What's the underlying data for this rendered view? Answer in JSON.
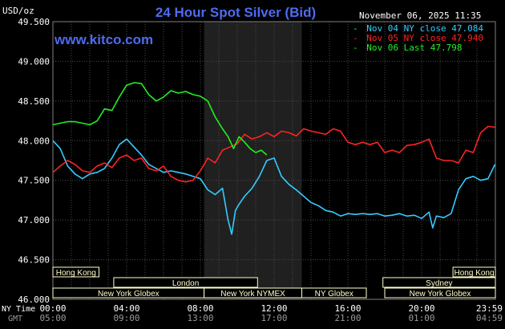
{
  "title": "24 Hour Spot Silver (Bid)",
  "brand": "www.kitco.com",
  "timestamp": "November 06, 2025 11:35",
  "unit_label": "USD/oz",
  "legend": [
    {
      "dash": "-",
      "text": "Nov 04 NY close 47.084",
      "color": "#33ccff"
    },
    {
      "dash": "-",
      "text": "Nov 05 NY close 47.940",
      "color": "#ff2222"
    },
    {
      "dash": "-",
      "text": "Nov 06 Last 47.798",
      "color": "#22ee22"
    }
  ],
  "axis_labels": {
    "ny_time": "NY Time",
    "gmt": "GMT"
  },
  "sessions": [
    {
      "label": "Hong Kong",
      "row": 0,
      "start": 0,
      "end": 2.5
    },
    {
      "label": "Hong Kong",
      "row": 0,
      "start": 21.7,
      "end": 24
    },
    {
      "label": "London",
      "row": 1,
      "start": 3.3,
      "end": 11.1
    },
    {
      "label": "Sydney",
      "row": 1,
      "start": 17.9,
      "end": 24
    },
    {
      "label": "New York Globex",
      "row": 2,
      "start": 0,
      "end": 8.2
    },
    {
      "label": "New York NYMEX",
      "row": 2,
      "start": 8.2,
      "end": 13.5
    },
    {
      "label": "NY Globex",
      "row": 2,
      "start": 13.5,
      "end": 17.0
    },
    {
      "label": "New York Globex",
      "row": 2,
      "start": 18.0,
      "end": 24
    }
  ],
  "colors": {
    "background": "#000000",
    "grid": "#4a4a4a",
    "axis_text": "#ffffff",
    "title": "#4f6bf0",
    "gmt_text": "#999999",
    "session_band": "#3a3a3a",
    "session_box": "#ffffcc",
    "session_text": "#ffffcc"
  },
  "chart_data": {
    "type": "line",
    "title": "24 Hour Spot Silver (Bid)",
    "ylabel": "USD/oz",
    "xlabel": "",
    "ylim": [
      46.0,
      49.5
    ],
    "xlim": [
      0,
      24
    ],
    "yticks": [
      "49.500",
      "49.000",
      "48.500",
      "48.000",
      "47.500",
      "47.000",
      "46.500",
      "46.000"
    ],
    "ytick_values": [
      49.5,
      49.0,
      48.5,
      48.0,
      47.5,
      47.0,
      46.5,
      46.0
    ],
    "xticks_ny": [
      "00:00",
      "04:00",
      "08:00",
      "12:00",
      "16:00",
      "20:00",
      "23:59"
    ],
    "xticks_gmt": [
      "05:00",
      "09:00",
      "13:00",
      "17:00",
      "21:00",
      "01:00",
      "04:59"
    ],
    "xtick_hours": [
      0,
      4,
      8,
      12,
      16,
      20,
      23.98
    ],
    "shaded_hours": [
      8.2,
      13.5
    ],
    "grid": true,
    "series": [
      {
        "name": "Nov 04 NY close 47.084",
        "color": "#33ccff",
        "x": [
          0,
          0.4,
          0.8,
          1.2,
          1.6,
          2.0,
          2.4,
          2.8,
          3.2,
          3.6,
          4.0,
          4.4,
          4.8,
          5.2,
          5.6,
          6.0,
          6.4,
          6.8,
          7.2,
          7.6,
          8.0,
          8.4,
          8.8,
          9.2,
          9.5,
          9.7,
          9.9,
          10.1,
          10.4,
          10.8,
          11.2,
          11.6,
          12.0,
          12.4,
          12.8,
          13.2,
          13.6,
          14.0,
          14.4,
          14.8,
          15.2,
          15.6,
          16.0,
          16.4,
          16.8,
          17.2,
          17.6,
          18.0,
          18.4,
          18.8,
          19.2,
          19.6,
          20.0,
          20.4,
          20.6,
          20.8,
          21.2,
          21.6,
          22.0,
          22.4,
          22.8,
          23.2,
          23.6,
          23.98
        ],
        "values": [
          48.0,
          47.9,
          47.68,
          47.58,
          47.52,
          47.58,
          47.6,
          47.65,
          47.78,
          47.95,
          48.02,
          47.92,
          47.82,
          47.7,
          47.65,
          47.6,
          47.62,
          47.6,
          47.58,
          47.55,
          47.52,
          47.38,
          47.32,
          47.4,
          47.0,
          46.82,
          47.12,
          47.2,
          47.3,
          47.4,
          47.55,
          47.75,
          47.78,
          47.55,
          47.45,
          47.38,
          47.3,
          47.22,
          47.18,
          47.12,
          47.1,
          47.05,
          47.08,
          47.07,
          47.08,
          47.07,
          47.08,
          47.05,
          47.06,
          47.08,
          47.05,
          47.06,
          47.02,
          47.1,
          46.9,
          47.05,
          47.03,
          47.08,
          47.38,
          47.52,
          47.55,
          47.5,
          47.52,
          47.7
        ]
      },
      {
        "name": "Nov 05 NY close 47.940",
        "color": "#ff2222",
        "x": [
          0,
          0.4,
          0.8,
          1.2,
          1.6,
          2.0,
          2.4,
          2.8,
          3.2,
          3.6,
          4.0,
          4.4,
          4.8,
          5.2,
          5.6,
          6.0,
          6.4,
          6.8,
          7.2,
          7.6,
          8.0,
          8.4,
          8.8,
          9.2,
          9.6,
          10.0,
          10.4,
          10.8,
          11.2,
          11.6,
          12.0,
          12.4,
          12.8,
          13.2,
          13.6,
          14.0,
          14.4,
          14.8,
          15.2,
          15.6,
          16.0,
          16.4,
          16.8,
          17.2,
          17.6,
          18.0,
          18.4,
          18.8,
          19.2,
          19.6,
          20.0,
          20.4,
          20.8,
          21.2,
          21.6,
          22.0,
          22.4,
          22.8,
          23.2,
          23.6,
          23.98
        ],
        "values": [
          47.6,
          47.68,
          47.75,
          47.7,
          47.62,
          47.6,
          47.68,
          47.72,
          47.66,
          47.78,
          47.82,
          47.75,
          47.78,
          47.65,
          47.62,
          47.68,
          47.55,
          47.5,
          47.48,
          47.5,
          47.62,
          47.78,
          47.72,
          47.88,
          47.92,
          47.96,
          48.08,
          48.02,
          48.05,
          48.1,
          48.05,
          48.12,
          48.1,
          48.06,
          48.15,
          48.12,
          48.1,
          48.08,
          48.15,
          48.12,
          47.98,
          47.95,
          47.98,
          47.95,
          47.98,
          47.85,
          47.88,
          47.85,
          47.94,
          47.95,
          47.98,
          48.02,
          47.78,
          47.75,
          47.75,
          47.72,
          47.88,
          47.85,
          48.1,
          48.18,
          48.17
        ]
      },
      {
        "name": "Nov 06 Last 47.798",
        "color": "#22ee22",
        "x": [
          0,
          0.4,
          0.8,
          1.2,
          1.6,
          2.0,
          2.4,
          2.8,
          3.2,
          3.6,
          4.0,
          4.4,
          4.8,
          5.2,
          5.6,
          6.0,
          6.4,
          6.8,
          7.2,
          7.6,
          8.0,
          8.4,
          8.8,
          9.2,
          9.5,
          9.8,
          10.1,
          10.4,
          10.7,
          11.0,
          11.3,
          11.6
        ],
        "values": [
          48.2,
          48.22,
          48.24,
          48.24,
          48.22,
          48.2,
          48.25,
          48.4,
          48.38,
          48.55,
          48.7,
          48.73,
          48.72,
          48.58,
          48.5,
          48.55,
          48.63,
          48.6,
          48.62,
          48.58,
          48.56,
          48.5,
          48.3,
          48.15,
          48.05,
          47.9,
          48.05,
          47.98,
          47.9,
          47.85,
          47.88,
          47.82
        ]
      }
    ]
  }
}
